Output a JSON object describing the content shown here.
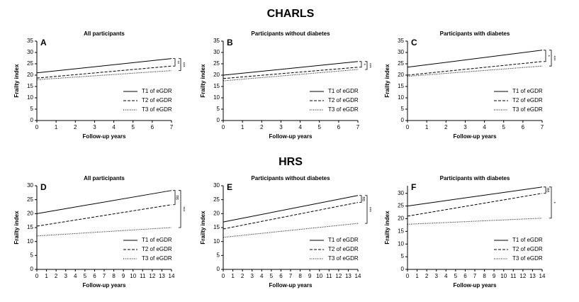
{
  "section_titles": [
    "CHARLS",
    "HRS"
  ],
  "chart_data": [
    {
      "type": "line",
      "panel": "A",
      "title": "All participants",
      "x_label": "Follow-up years",
      "y_label": "Frailty index",
      "x": [
        0,
        7
      ],
      "xlim": [
        0,
        7
      ],
      "xticks": [
        0,
        1,
        2,
        3,
        4,
        5,
        6,
        7
      ],
      "ylim": [
        0,
        35
      ],
      "yticks": [
        0,
        5,
        10,
        15,
        20,
        25,
        30,
        35
      ],
      "series": [
        {
          "name": "T1 of eGDR",
          "dash": "solid",
          "color": "#000000",
          "values": [
            21,
            27.3
          ]
        },
        {
          "name": "T2 of eGDR",
          "dash": "dashed",
          "color": "#000000",
          "values": [
            18.7,
            24
          ]
        },
        {
          "name": "T3 of eGDR",
          "dash": "dotted",
          "color": "#000000",
          "values": [
            18,
            22
          ]
        }
      ],
      "significance": [
        "**",
        "***"
      ]
    },
    {
      "type": "line",
      "panel": "B",
      "title": "Participants without diabetes",
      "x_label": "Follow-up years",
      "y_label": "Frailty index",
      "x": [
        0,
        7
      ],
      "xlim": [
        0,
        7
      ],
      "xticks": [
        0,
        1,
        2,
        3,
        4,
        5,
        6,
        7
      ],
      "ylim": [
        0,
        35
      ],
      "yticks": [
        0,
        5,
        10,
        15,
        20,
        25,
        30,
        35
      ],
      "series": [
        {
          "name": "T1 of eGDR",
          "dash": "solid",
          "color": "#000000",
          "values": [
            20,
            26
          ]
        },
        {
          "name": "T2 of eGDR",
          "dash": "dashed",
          "color": "#000000",
          "values": [
            18.5,
            23.5
          ]
        },
        {
          "name": "T3 of eGDR",
          "dash": "dotted",
          "color": "#000000",
          "values": [
            17.5,
            22.5
          ]
        }
      ],
      "significance": [
        "*",
        "***"
      ]
    },
    {
      "type": "line",
      "panel": "C",
      "title": "Participants with diabetes",
      "x_label": "Follow-up years",
      "y_label": "Frailty index",
      "x": [
        0,
        7
      ],
      "xlim": [
        0,
        7
      ],
      "xticks": [
        0,
        1,
        2,
        3,
        4,
        5,
        6,
        7
      ],
      "ylim": [
        0,
        35
      ],
      "yticks": [
        0,
        5,
        10,
        15,
        20,
        25,
        30,
        35
      ],
      "series": [
        {
          "name": "T1 of eGDR",
          "dash": "solid",
          "color": "#000000",
          "values": [
            23.5,
            31
          ]
        },
        {
          "name": "T2 of eGDR",
          "dash": "dashed",
          "color": "#000000",
          "values": [
            20,
            26
          ]
        },
        {
          "name": "T3 of eGDR",
          "dash": "dotted",
          "color": "#000000",
          "values": [
            19.5,
            24
          ]
        }
      ],
      "significance": [
        "*",
        "***"
      ]
    },
    {
      "type": "line",
      "panel": "D",
      "title": "All participants",
      "x_label": "Follow-up years",
      "y_label": "Frailty index",
      "x": [
        0,
        14
      ],
      "xlim": [
        0,
        14
      ],
      "xticks": [
        0,
        1,
        2,
        3,
        4,
        5,
        6,
        7,
        8,
        9,
        10,
        11,
        12,
        13,
        14
      ],
      "ylim": [
        0,
        30
      ],
      "yticks": [
        0,
        5,
        10,
        15,
        20,
        25,
        30
      ],
      "series": [
        {
          "name": "T1 of eGDR",
          "dash": "solid",
          "color": "#000000",
          "values": [
            20,
            28.3
          ]
        },
        {
          "name": "T2 of eGDR",
          "dash": "dashed",
          "color": "#000000",
          "values": [
            15.5,
            23.2
          ]
        },
        {
          "name": "T3 of eGDR",
          "dash": "dotted",
          "color": "#000000",
          "values": [
            12,
            15
          ]
        }
      ],
      "significance": [
        "ns",
        "***"
      ]
    },
    {
      "type": "line",
      "panel": "E",
      "title": "Participants without diabetes",
      "x_label": "Follow-up years",
      "y_label": "Frailty index",
      "x": [
        0,
        14
      ],
      "xlim": [
        0,
        14
      ],
      "xticks": [
        0,
        1,
        2,
        3,
        4,
        5,
        6,
        7,
        8,
        9,
        10,
        11,
        12,
        13,
        14
      ],
      "ylim": [
        0,
        30
      ],
      "yticks": [
        0,
        5,
        10,
        15,
        20,
        25,
        30
      ],
      "series": [
        {
          "name": "T1 of eGDR",
          "dash": "solid",
          "color": "#000000",
          "values": [
            17,
            26.5
          ]
        },
        {
          "name": "T2 of eGDR",
          "dash": "dashed",
          "color": "#000000",
          "values": [
            14.5,
            24
          ]
        },
        {
          "name": "T3 of eGDR",
          "dash": "dotted",
          "color": "#000000",
          "values": [
            11.5,
            16.5
          ]
        }
      ],
      "significance": [
        "ns",
        "***"
      ]
    },
    {
      "type": "line",
      "panel": "F",
      "title": "Participants with diabetes",
      "x_label": "Follow-up years",
      "y_label": "Frailty index",
      "x": [
        0,
        14
      ],
      "xlim": [
        0,
        14
      ],
      "xticks": [
        0,
        1,
        2,
        3,
        4,
        5,
        6,
        7,
        8,
        9,
        10,
        11,
        12,
        13,
        14
      ],
      "ylim": [
        0,
        33
      ],
      "yticks": [
        0,
        5,
        10,
        15,
        20,
        25,
        30
      ],
      "series": [
        {
          "name": "T1 of eGDR",
          "dash": "solid",
          "color": "#000000",
          "values": [
            25,
            32.5
          ]
        },
        {
          "name": "T2 of eGDR",
          "dash": "dashed",
          "color": "#000000",
          "values": [
            21,
            30
          ]
        },
        {
          "name": "T3 of eGDR",
          "dash": "dotted",
          "color": "#000000",
          "values": [
            17.8,
            20.2
          ]
        }
      ],
      "significance": [
        "ns",
        "*"
      ]
    }
  ]
}
